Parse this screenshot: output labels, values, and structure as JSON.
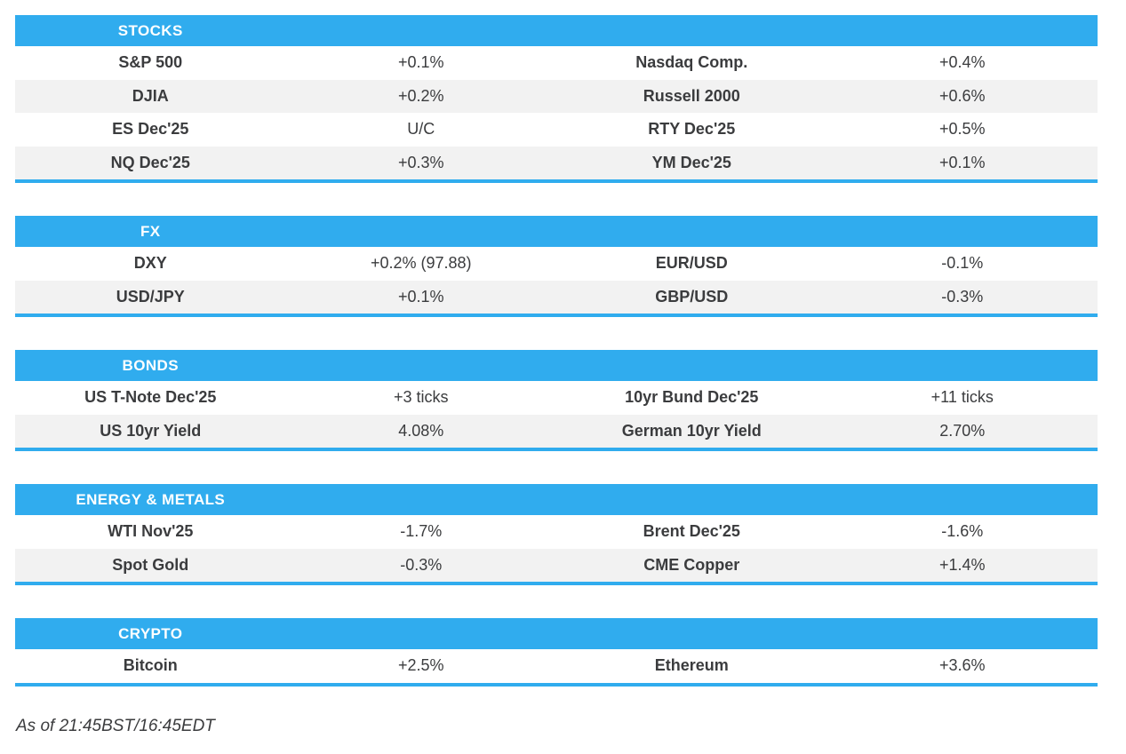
{
  "colors": {
    "accent_blue": "#30ACEE",
    "row_alt_gray": "#F2F2F2",
    "text_dark": "#3B3C3E",
    "header_text": "#FFFFFF"
  },
  "chart_data": {
    "type": "table",
    "layout": "five sections, each a 4-column grid (instrument/change pairs), all cells center-aligned, blue header bar and blue underline per section, alternating white/gray rows",
    "sections": [
      {
        "title": "STOCKS",
        "rows": [
          {
            "l_label": "S&P 500",
            "l_value": "+0.1%",
            "r_label": "Nasdaq Comp.",
            "r_value": "+0.4%"
          },
          {
            "l_label": "DJIA",
            "l_value": "+0.2%",
            "r_label": "Russell 2000",
            "r_value": "+0.6%"
          },
          {
            "l_label": "ES Dec'25",
            "l_value": "U/C",
            "r_label": "RTY Dec'25",
            "r_value": "+0.5%"
          },
          {
            "l_label": "NQ Dec'25",
            "l_value": "+0.3%",
            "r_label": "YM Dec'25",
            "r_value": "+0.1%"
          }
        ]
      },
      {
        "title": "FX",
        "rows": [
          {
            "l_label": "DXY",
            "l_value": "+0.2% (97.88)",
            "r_label": "EUR/USD",
            "r_value": "-0.1%"
          },
          {
            "l_label": "USD/JPY",
            "l_value": "+0.1%",
            "r_label": "GBP/USD",
            "r_value": "-0.3%"
          }
        ]
      },
      {
        "title": "BONDS",
        "rows": [
          {
            "l_label": "US T-Note Dec'25",
            "l_value": "+3 ticks",
            "r_label": "10yr Bund Dec'25",
            "r_value": "+11 ticks"
          },
          {
            "l_label": "US 10yr Yield",
            "l_value": "4.08%",
            "r_label": "German 10yr Yield",
            "r_value": "2.70%"
          }
        ]
      },
      {
        "title": "ENERGY & METALS",
        "rows": [
          {
            "l_label": "WTI Nov'25",
            "l_value": "-1.7%",
            "r_label": "Brent Dec'25",
            "r_value": "-1.6%"
          },
          {
            "l_label": "Spot Gold",
            "l_value": "-0.3%",
            "r_label": "CME Copper",
            "r_value": "+1.4%"
          }
        ]
      },
      {
        "title": "CRYPTO",
        "rows": [
          {
            "l_label": "Bitcoin",
            "l_value": "+2.5%",
            "r_label": "Ethereum",
            "r_value": "+3.6%"
          }
        ]
      }
    ],
    "footer_note": "As of 21:45BST/16:45EDT"
  }
}
